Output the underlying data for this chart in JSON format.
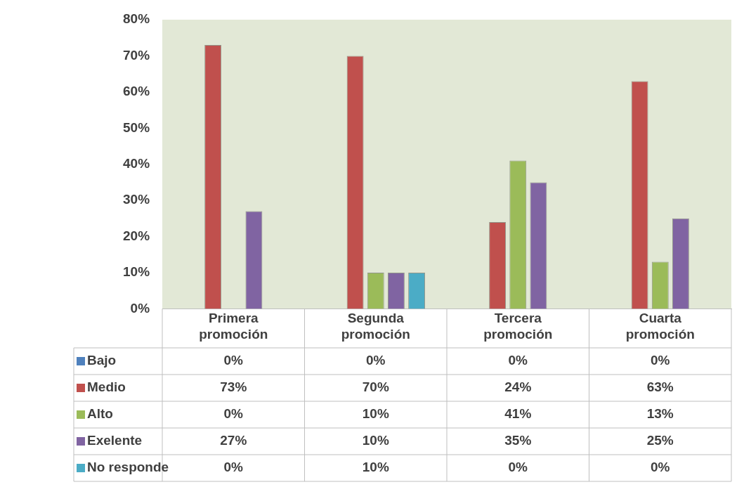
{
  "chart_data": {
    "type": "bar",
    "categories": [
      "Primera promoción",
      "Segunda promoción",
      "Tercera promoción",
      "Cuarta promoción"
    ],
    "series": [
      {
        "name": "Bajo",
        "color": "#4f81bd",
        "values": [
          0,
          0,
          0,
          0
        ],
        "value_labels": [
          "0%",
          "0%",
          "0%",
          "0%"
        ]
      },
      {
        "name": "Medio",
        "color": "#c0504d",
        "values": [
          73,
          70,
          24,
          63
        ],
        "value_labels": [
          "73%",
          "70%",
          "24%",
          "63%"
        ]
      },
      {
        "name": "Alto",
        "color": "#9bbb59",
        "values": [
          0,
          10,
          41,
          13
        ],
        "value_labels": [
          "0%",
          "10%",
          "41%",
          "13%"
        ]
      },
      {
        "name": "Exelente",
        "color": "#8064a2",
        "values": [
          27,
          10,
          35,
          25
        ],
        "value_labels": [
          "27%",
          "10%",
          "35%",
          "25%"
        ]
      },
      {
        "name": "No responde",
        "color": "#4bacc6",
        "values": [
          0,
          10,
          0,
          0
        ],
        "value_labels": [
          "0%",
          "10%",
          "0%",
          "0%"
        ]
      }
    ],
    "ylim": [
      0,
      80
    ],
    "yticks": [
      {
        "value": 0,
        "label": "0%"
      },
      {
        "value": 10,
        "label": "10%"
      },
      {
        "value": 20,
        "label": "20%"
      },
      {
        "value": 30,
        "label": "30%"
      },
      {
        "value": 40,
        "label": "40%"
      },
      {
        "value": 50,
        "label": "50%"
      },
      {
        "value": 60,
        "label": "60%"
      },
      {
        "value": 70,
        "label": "70%"
      },
      {
        "value": 80,
        "label": "80%"
      }
    ],
    "grid": false,
    "legend": "bottom"
  }
}
